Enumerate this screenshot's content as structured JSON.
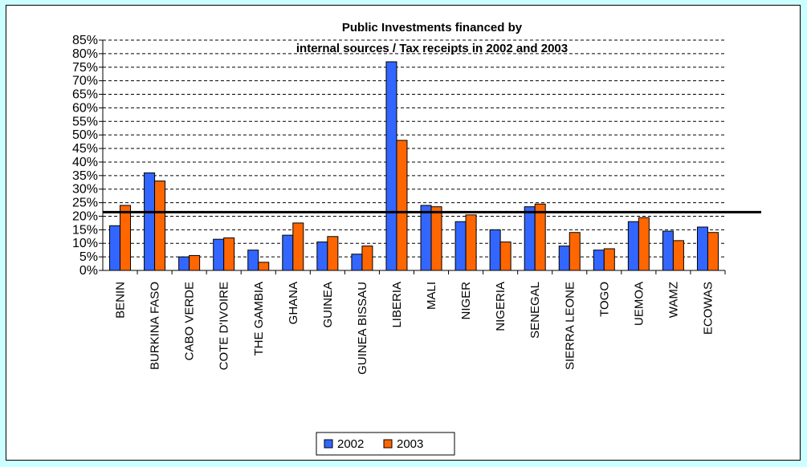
{
  "chart_data": {
    "type": "bar",
    "title_lines": [
      "Public Investments financed by",
      "internal sources / Tax receipts in 2002 and  2003"
    ],
    "categories": [
      "BENIN",
      "BURKINA FASO",
      "CABO VERDE",
      "COTE D'IVOIRE",
      "THE GAMBIA",
      "GHANA",
      "GUINEA",
      "GUINEA BISSAU",
      "LIBERIA",
      "MALI",
      "NIGER",
      "NIGERIA",
      "SENEGAL",
      "SIERRA LEONE",
      "TOGO",
      "UEMOA",
      "WAMZ",
      "ECOWAS"
    ],
    "series": [
      {
        "name": "2002",
        "color": "#3366ff",
        "values": [
          16.5,
          36,
          5,
          11.5,
          7.5,
          13,
          10.5,
          6,
          77,
          24,
          18,
          15,
          23.5,
          9,
          7.5,
          18,
          14.5,
          16
        ]
      },
      {
        "name": "2003",
        "color": "#ff6600",
        "values": [
          24,
          33,
          5.5,
          12,
          3,
          17.5,
          12.5,
          9,
          48,
          23.5,
          20.5,
          10.5,
          24.5,
          14,
          8,
          19.5,
          11,
          14
        ]
      }
    ],
    "reference_line": 21.5,
    "ylim": [
      0,
      85
    ],
    "ytick_step": 5,
    "ytick_suffix": "%",
    "grid": "dashed horizontal",
    "legend_position": "bottom"
  }
}
